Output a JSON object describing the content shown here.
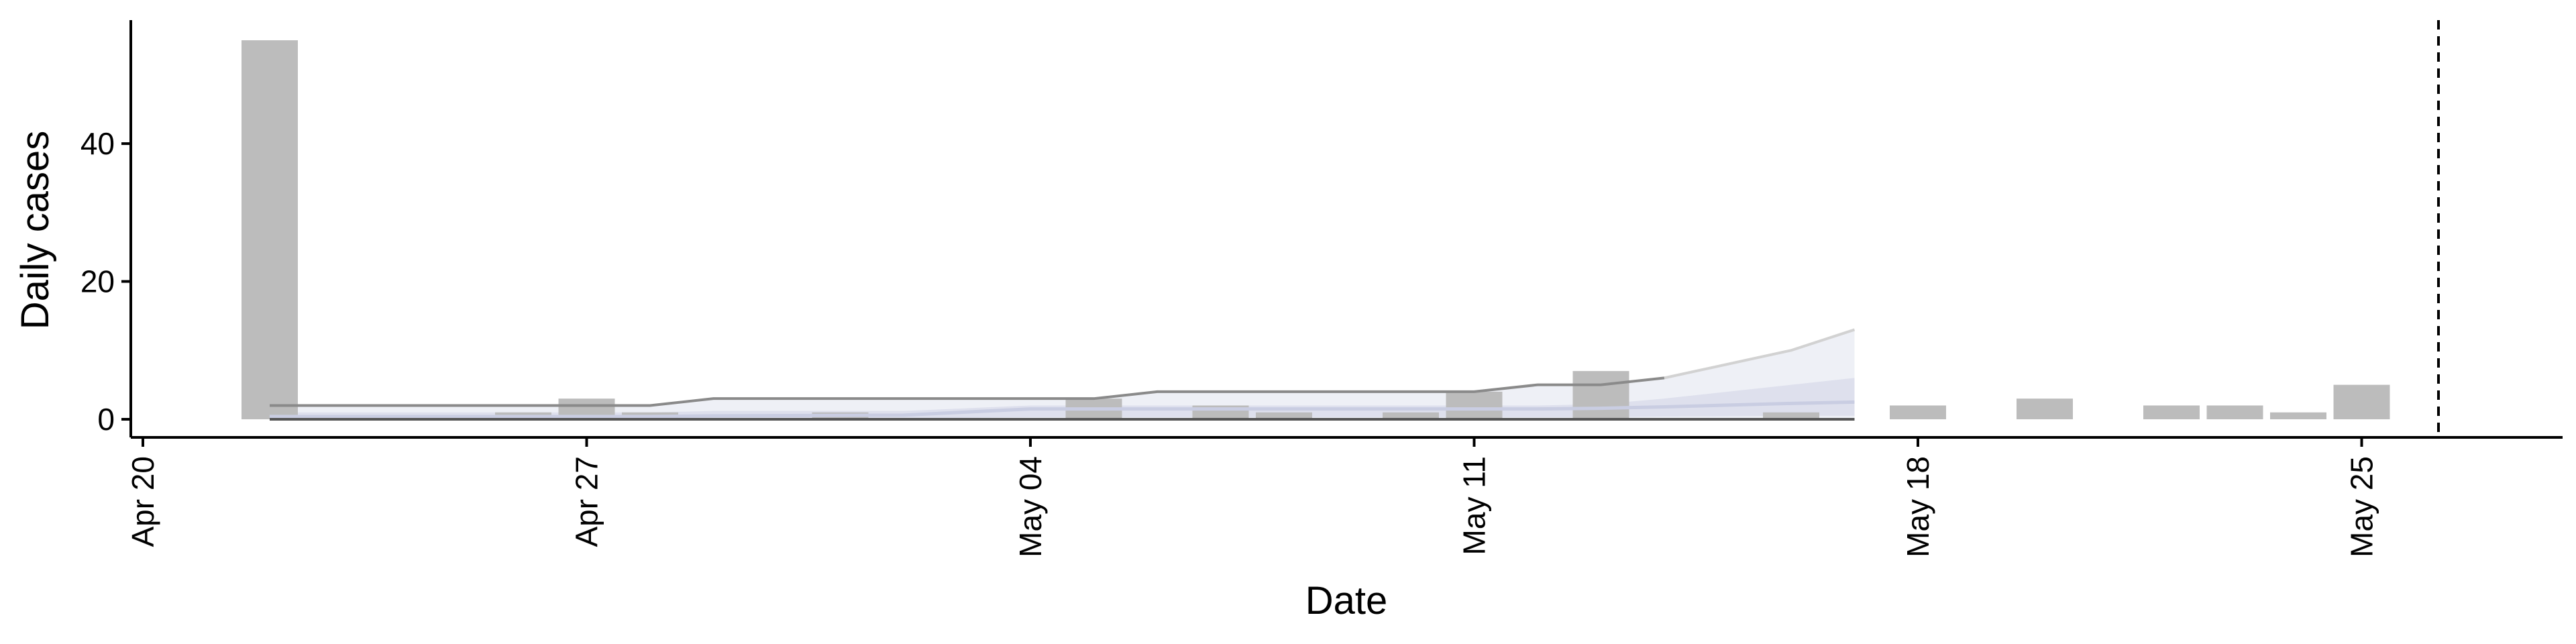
{
  "chart_data": {
    "type": "bar",
    "title": "",
    "xlabel": "Date",
    "ylabel": "Daily cases",
    "x_ticks": [
      {
        "date": "2020-04-20",
        "label": "Apr 20"
      },
      {
        "date": "2020-04-27",
        "label": "Apr 27"
      },
      {
        "date": "2020-05-04",
        "label": "May 04"
      },
      {
        "date": "2020-05-11",
        "label": "May 11"
      },
      {
        "date": "2020-05-18",
        "label": "May 18"
      },
      {
        "date": "2020-05-25",
        "label": "May 25"
      }
    ],
    "y_ticks": [
      {
        "value": 0,
        "label": "0"
      },
      {
        "value": 20,
        "label": "20"
      },
      {
        "value": 40,
        "label": "40"
      }
    ],
    "xlim": [
      "2020-04-20",
      "2020-05-31"
    ],
    "ylim": [
      0,
      58
    ],
    "grid": false,
    "legend": "none",
    "cases": [
      {
        "date": "2020-04-22",
        "value": 55
      },
      {
        "date": "2020-04-26",
        "value": 1
      },
      {
        "date": "2020-04-27",
        "value": 3
      },
      {
        "date": "2020-04-28",
        "value": 1
      },
      {
        "date": "2020-05-01",
        "value": 1
      },
      {
        "date": "2020-05-05",
        "value": 3
      },
      {
        "date": "2020-05-07",
        "value": 2
      },
      {
        "date": "2020-05-08",
        "value": 1
      },
      {
        "date": "2020-05-10",
        "value": 1
      },
      {
        "date": "2020-05-11",
        "value": 4
      },
      {
        "date": "2020-05-13",
        "value": 7
      },
      {
        "date": "2020-05-16",
        "value": 1
      },
      {
        "date": "2020-05-18",
        "value": 2
      },
      {
        "date": "2020-05-20",
        "value": 3
      },
      {
        "date": "2020-05-22",
        "value": 2
      },
      {
        "date": "2020-05-23",
        "value": 2
      },
      {
        "date": "2020-05-24",
        "value": 1
      },
      {
        "date": "2020-05-25",
        "value": 5
      }
    ],
    "estimate": [
      {
        "date": "2020-04-22",
        "median": 0.4,
        "lower_50": 0.1,
        "upper_50": 1.0,
        "upper_90": 2.0
      },
      {
        "date": "2020-04-24",
        "median": 0.4,
        "lower_50": 0.1,
        "upper_50": 1.0,
        "upper_90": 2.0
      },
      {
        "date": "2020-04-26",
        "median": 0.4,
        "lower_50": 0.1,
        "upper_50": 1.0,
        "upper_90": 2.0
      },
      {
        "date": "2020-04-28",
        "median": 0.4,
        "lower_50": 0.1,
        "upper_50": 1.0,
        "upper_90": 2.0
      },
      {
        "date": "2020-04-29",
        "median": 0.5,
        "lower_50": 0.1,
        "upper_50": 1.2,
        "upper_90": 3.0
      },
      {
        "date": "2020-05-02",
        "median": 0.6,
        "lower_50": 0.1,
        "upper_50": 1.2,
        "upper_90": 3.0
      },
      {
        "date": "2020-05-04",
        "median": 1.5,
        "lower_50": 0.3,
        "upper_50": 2.0,
        "upper_90": 3.0
      },
      {
        "date": "2020-05-05",
        "median": 1.5,
        "lower_50": 0.3,
        "upper_50": 2.0,
        "upper_90": 3.0
      },
      {
        "date": "2020-05-06",
        "median": 1.5,
        "lower_50": 0.3,
        "upper_50": 2.0,
        "upper_90": 4.0
      },
      {
        "date": "2020-05-09",
        "median": 1.5,
        "lower_50": 0.3,
        "upper_50": 2.0,
        "upper_90": 4.0
      },
      {
        "date": "2020-05-11",
        "median": 1.5,
        "lower_50": 0.3,
        "upper_50": 2.0,
        "upper_90": 4.0
      },
      {
        "date": "2020-05-12",
        "median": 1.5,
        "lower_50": 0.3,
        "upper_50": 2.0,
        "upper_90": 5.0
      },
      {
        "date": "2020-05-13",
        "median": 1.6,
        "lower_50": 0.3,
        "upper_50": 2.2,
        "upper_90": 5.0
      },
      {
        "date": "2020-05-14",
        "median": 1.8,
        "lower_50": 0.4,
        "upper_50": 3.0,
        "upper_90": 6.0
      },
      {
        "date": "2020-05-16",
        "median": 2.3,
        "lower_50": 0.5,
        "upper_50": 5.0,
        "upper_90": 10.0
      },
      {
        "date": "2020-05-17",
        "median": 2.5,
        "lower_50": 0.5,
        "upper_50": 6.0,
        "upper_90": 13.0
      }
    ],
    "vline": {
      "date": "2020-05-26",
      "style": "dashed"
    },
    "colors": {
      "bars": "#bcbcbc",
      "band_outer": "#eef0f6",
      "band_inner": "#d9dceb",
      "median_line": "#c9cde2",
      "upper_line": "#8a8a8a",
      "upper_line_forecast": "#d2d2d2",
      "axis": "#000000"
    }
  }
}
